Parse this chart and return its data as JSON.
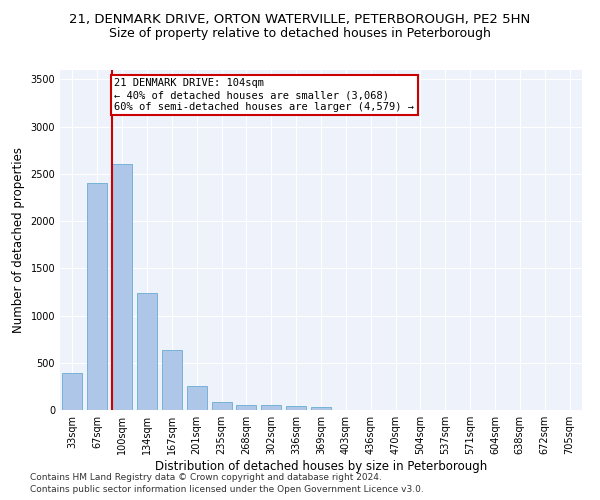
{
  "title1": "21, DENMARK DRIVE, ORTON WATERVILLE, PETERBOROUGH, PE2 5HN",
  "title2": "Size of property relative to detached houses in Peterborough",
  "xlabel": "Distribution of detached houses by size in Peterborough",
  "ylabel": "Number of detached properties",
  "categories": [
    "33sqm",
    "67sqm",
    "100sqm",
    "134sqm",
    "167sqm",
    "201sqm",
    "235sqm",
    "268sqm",
    "302sqm",
    "336sqm",
    "369sqm",
    "403sqm",
    "436sqm",
    "470sqm",
    "504sqm",
    "537sqm",
    "571sqm",
    "604sqm",
    "638sqm",
    "672sqm",
    "705sqm"
  ],
  "values": [
    390,
    2400,
    2600,
    1240,
    640,
    255,
    90,
    58,
    55,
    40,
    30,
    0,
    0,
    0,
    0,
    0,
    0,
    0,
    0,
    0,
    0
  ],
  "bar_color": "#aec6e8",
  "bar_edge_color": "#6aacd4",
  "property_label": "21 DENMARK DRIVE: 104sqm",
  "annotation_line1": "← 40% of detached houses are smaller (3,068)",
  "annotation_line2": "60% of semi-detached houses are larger (4,579) →",
  "vline_x_index": 2,
  "vline_color": "#cc0000",
  "box_color": "#cc0000",
  "ylim": [
    0,
    3600
  ],
  "yticks": [
    0,
    500,
    1000,
    1500,
    2000,
    2500,
    3000,
    3500
  ],
  "footnote1": "Contains HM Land Registry data © Crown copyright and database right 2024.",
  "footnote2": "Contains public sector information licensed under the Open Government Licence v3.0.",
  "bg_color": "#eef3fb",
  "grid_color": "#ffffff",
  "title1_fontsize": 9.5,
  "title2_fontsize": 9,
  "tick_fontsize": 7,
  "ylabel_fontsize": 8.5,
  "xlabel_fontsize": 8.5,
  "annotation_fontsize": 7.5,
  "footnote_fontsize": 6.5
}
